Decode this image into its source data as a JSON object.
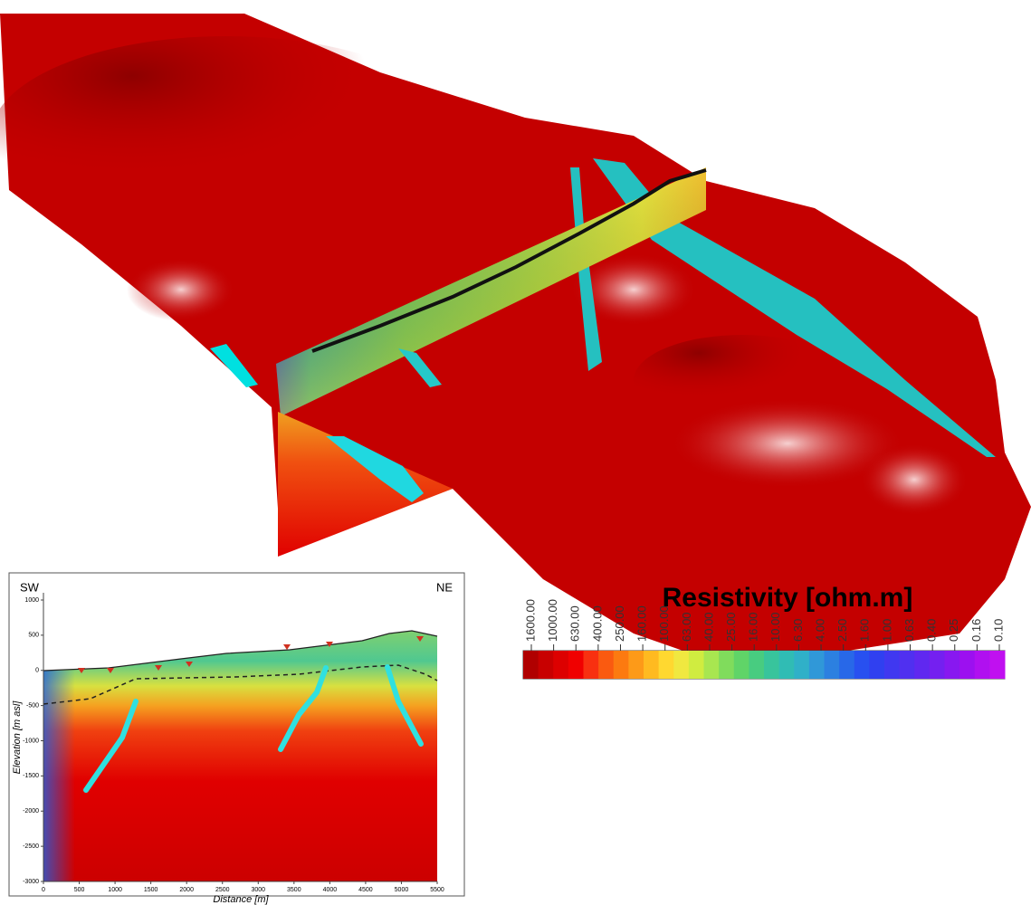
{
  "inset": {
    "left_label": "SW",
    "right_label": "NE",
    "y_axis_label": "Elevation [m asl]",
    "x_axis_label": "Distance [m]",
    "xticks": [
      0,
      500,
      1000,
      1500,
      2000,
      2500,
      3000,
      3500,
      4000,
      4500,
      5000,
      5500
    ],
    "yticks": [
      1000,
      500,
      0,
      -500,
      -1000,
      -1500,
      -2000,
      -2500,
      -3000
    ]
  },
  "colorbar": {
    "title": "Resistivity [ohm.m]",
    "labels": [
      "1600.00",
      "1000.00",
      "630.00",
      "400.00",
      "250.00",
      "160.00",
      "100.00",
      "63.00",
      "40.00",
      "25.00",
      "16.00",
      "10.00",
      "6.30",
      "4.00",
      "2.50",
      "1.60",
      "1.00",
      "0.63",
      "0.40",
      "0.25",
      "0.16",
      "0.10"
    ]
  }
}
